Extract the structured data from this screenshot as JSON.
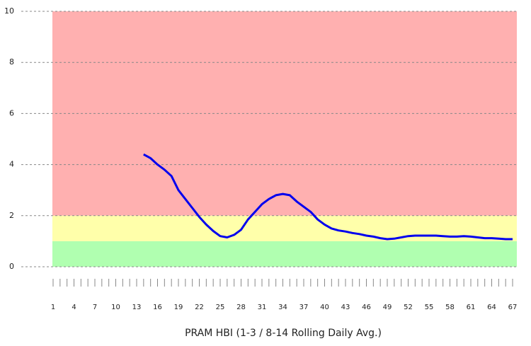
{
  "chart_data": {
    "type": "line",
    "x_label": "PRAM HBI (1-3 / 8-14 Rolling Daily Avg.)",
    "categories": [
      1,
      null,
      null,
      4,
      null,
      null,
      7,
      null,
      null,
      10,
      null,
      null,
      13,
      null,
      null,
      16,
      null,
      null,
      19,
      null,
      null,
      22,
      null,
      null,
      25,
      null,
      null,
      28,
      null,
      null,
      31,
      null,
      null,
      34,
      null,
      null,
      37,
      null,
      null,
      40,
      null,
      null,
      43,
      null,
      null,
      46,
      null,
      null,
      49,
      null,
      null,
      52,
      null,
      null,
      55,
      null,
      null,
      58,
      null,
      null,
      61,
      null,
      null,
      64,
      null,
      null,
      67
    ],
    "series": [
      {
        "color": "#0000ee",
        "values": [
          null,
          null,
          null,
          null,
          null,
          null,
          null,
          null,
          null,
          null,
          null,
          null,
          null,
          4.4,
          4.25,
          4.0,
          3.8,
          3.55,
          3.0,
          2.65,
          2.3,
          1.95,
          1.65,
          1.4,
          1.2,
          1.15,
          1.25,
          1.45,
          1.85,
          2.15,
          2.45,
          2.65,
          2.8,
          2.85,
          2.8,
          2.55,
          2.35,
          2.15,
          1.85,
          1.65,
          1.5,
          1.42,
          1.38,
          1.32,
          1.28,
          1.22,
          1.18,
          1.12,
          1.08,
          1.1,
          1.15,
          1.2,
          1.22,
          1.22,
          1.22,
          1.22,
          1.2,
          1.18,
          1.18,
          1.2,
          1.18,
          1.15,
          1.12,
          1.12,
          1.1,
          1.08,
          1.08
        ]
      }
    ],
    "bands": [
      {
        "from": 2,
        "to": 10,
        "color": "#ffb0b0"
      },
      {
        "from": 1,
        "to": 2,
        "color": "#ffffaa"
      },
      {
        "from": 0,
        "to": 1,
        "color": "#b0ffb0"
      }
    ],
    "ylim": [
      0,
      10
    ],
    "yticks": [
      0,
      2,
      4,
      6,
      8,
      10
    ],
    "grid": true
  }
}
